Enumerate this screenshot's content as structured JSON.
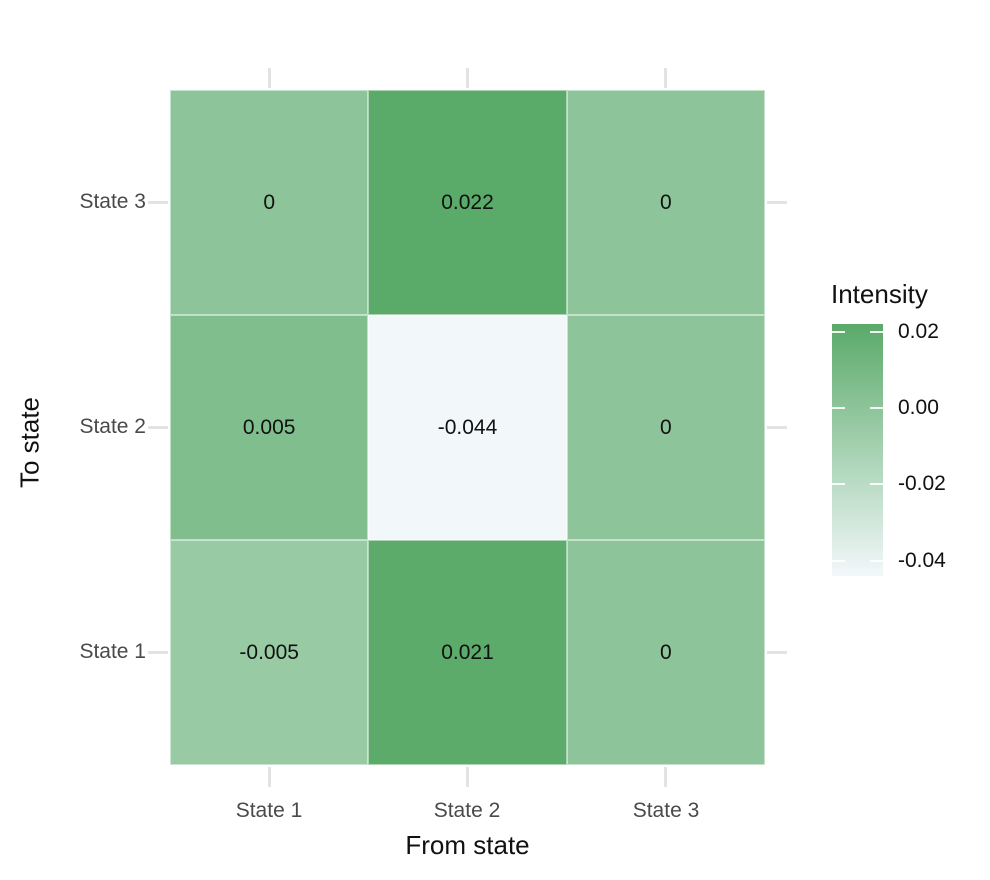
{
  "chart_data": {
    "type": "heatmap",
    "title": "",
    "xlabel": "From state",
    "ylabel": "To state",
    "x_categories": [
      "State 1",
      "State 2",
      "State 3"
    ],
    "y_categories_top_to_bottom": [
      "State 3",
      "State 2",
      "State 1"
    ],
    "rows": [
      {
        "to_state": "State 3",
        "values": [
          0,
          0.022,
          0
        ],
        "labels": [
          "0",
          "0.022",
          "0"
        ]
      },
      {
        "to_state": "State 2",
        "values": [
          0.005,
          -0.044,
          0
        ],
        "labels": [
          "0.005",
          "-0.044",
          "0"
        ]
      },
      {
        "to_state": "State 1",
        "values": [
          -0.005,
          0.021,
          0
        ],
        "labels": [
          "-0.005",
          "0.021",
          "0"
        ]
      }
    ],
    "color_scale": {
      "low_value": -0.044,
      "high_value": 0.022,
      "low_color": "#f2f8fa",
      "high_color": "#5aaa69"
    },
    "legend": {
      "title": "Intensity",
      "position": "right",
      "ticks": [
        {
          "label": "0.02",
          "value": 0.02
        },
        {
          "label": "0.00",
          "value": 0.0
        },
        {
          "label": "-0.02",
          "value": -0.02
        },
        {
          "label": "-0.04",
          "value": -0.04
        }
      ]
    },
    "grid": false,
    "background": "#ffffff"
  },
  "colors": {
    "background": "#ffffff",
    "axis_tick": "#e3e3e3",
    "tick_label_text": "#4a4a4a",
    "axis_title_text": "#111111",
    "cell_text": "#111111"
  }
}
